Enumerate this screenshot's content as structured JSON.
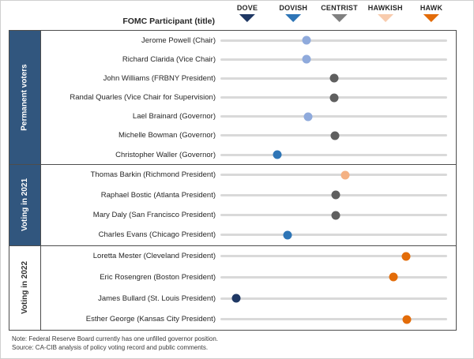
{
  "header": {
    "participant_label": "FOMC Participant (title)",
    "scale": [
      {
        "label": "DOVE",
        "color": "#1f3864"
      },
      {
        "label": "DOVISH",
        "color": "#2e75b6"
      },
      {
        "label": "CENTRIST",
        "color": "#808080"
      },
      {
        "label": "HAWKISH",
        "color": "#f8cbad"
      },
      {
        "label": "HAWK",
        "color": "#e36c09"
      }
    ]
  },
  "sections": [
    {
      "label": "Permanent voters",
      "style": "filled",
      "rows": [
        {
          "name": "Jerome Powell (Chair)",
          "position": 1.37,
          "stance": "lean-dovish",
          "color": "#8faadc"
        },
        {
          "name": "Richard Clarida (Vice Chair)",
          "position": 1.37,
          "stance": "lean-dovish",
          "color": "#8faadc"
        },
        {
          "name": "John Williams (FRBNY President)",
          "position": 1.97,
          "stance": "centrist",
          "color": "#5f5f5f"
        },
        {
          "name": "Randal Quarles (Vice Chair for Supervision)",
          "position": 1.97,
          "stance": "centrist",
          "color": "#5f5f5f"
        },
        {
          "name": "Lael Brainard (Governor)",
          "position": 1.41,
          "stance": "lean-dovish",
          "color": "#8faadc"
        },
        {
          "name": "Michelle Bowman (Governor)",
          "position": 1.99,
          "stance": "centrist",
          "color": "#5f5f5f"
        },
        {
          "name": "Christopher Waller (Governor)",
          "position": 0.74,
          "stance": "dovish",
          "color": "#2e75b6"
        }
      ]
    },
    {
      "label": "Voting in 2021",
      "style": "filled",
      "rows": [
        {
          "name": "Thomas Barkin (Richmond President)",
          "position": 2.21,
          "stance": "lean-hawkish",
          "color": "#f4b183"
        },
        {
          "name": "Raphael Bostic (Atlanta President)",
          "position": 2.01,
          "stance": "centrist",
          "color": "#5f5f5f"
        },
        {
          "name": "Mary Daly (San Francisco President)",
          "position": 2.01,
          "stance": "centrist",
          "color": "#5f5f5f"
        },
        {
          "name": "Charles Evans (Chicago President)",
          "position": 0.96,
          "stance": "dovish",
          "color": "#2e75b6"
        }
      ]
    },
    {
      "label": "Voting in 2022",
      "style": "plain",
      "rows": [
        {
          "name": "Loretta Mester (Cleveland President)",
          "position": 3.54,
          "stance": "hawkish",
          "color": "#e36c09"
        },
        {
          "name": "Eric Rosengren (Boston President)",
          "position": 3.26,
          "stance": "hawkish",
          "color": "#e36c09"
        },
        {
          "name": "James Bullard (St. Louis President)",
          "position": -0.15,
          "stance": "dove",
          "color": "#1f3864"
        },
        {
          "name": "Esther George (Kansas City President)",
          "position": 3.56,
          "stance": "hawkish",
          "color": "#e36c09"
        }
      ]
    }
  ],
  "notes": [
    "Note: Federal Reserve Board currently has one unfilled  governor position.",
    "Source: CA-CIB analysis of policy voting record and public comments."
  ],
  "chart_data": {
    "type": "scatter",
    "title": "FOMC participant dove-hawk positioning",
    "xlabel": "FOMC Participant (title)",
    "x_scale": {
      "ticks": [
        "DOVE",
        "DOVISH",
        "CENTRIST",
        "HAWKISH",
        "HAWK"
      ],
      "tick_values": [
        0,
        1,
        2,
        3,
        4
      ],
      "range": [
        -0.5,
        4.5
      ]
    },
    "legend_position": "top",
    "grid": false,
    "series": [
      {
        "group": "Permanent voters",
        "name": "Jerome Powell (Chair)",
        "x": 1.37
      },
      {
        "group": "Permanent voters",
        "name": "Richard Clarida (Vice Chair)",
        "x": 1.37
      },
      {
        "group": "Permanent voters",
        "name": "John Williams (FRBNY President)",
        "x": 1.97
      },
      {
        "group": "Permanent voters",
        "name": "Randal Quarles (Vice Chair for Supervision)",
        "x": 1.97
      },
      {
        "group": "Permanent voters",
        "name": "Lael Brainard (Governor)",
        "x": 1.41
      },
      {
        "group": "Permanent voters",
        "name": "Michelle Bowman (Governor)",
        "x": 1.99
      },
      {
        "group": "Permanent voters",
        "name": "Christopher Waller (Governor)",
        "x": 0.74
      },
      {
        "group": "Voting in 2021",
        "name": "Thomas Barkin (Richmond President)",
        "x": 2.21
      },
      {
        "group": "Voting in 2021",
        "name": "Raphael Bostic (Atlanta President)",
        "x": 2.01
      },
      {
        "group": "Voting in 2021",
        "name": "Mary Daly (San Francisco President)",
        "x": 2.01
      },
      {
        "group": "Voting in 2021",
        "name": "Charles Evans (Chicago President)",
        "x": 0.96
      },
      {
        "group": "Voting in 2022",
        "name": "Loretta Mester (Cleveland President)",
        "x": 3.54
      },
      {
        "group": "Voting in 2022",
        "name": "Eric Rosengren (Boston President)",
        "x": 3.26
      },
      {
        "group": "Voting in 2022",
        "name": "James Bullard (St. Louis President)",
        "x": -0.15
      },
      {
        "group": "Voting in 2022",
        "name": "Esther George (Kansas City President)",
        "x": 3.56
      }
    ]
  }
}
